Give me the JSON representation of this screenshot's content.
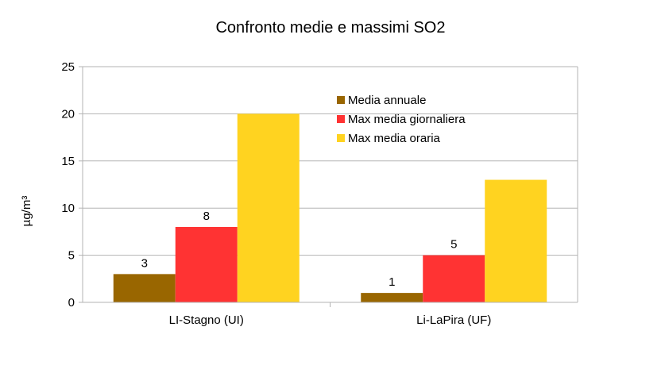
{
  "chart_data": {
    "type": "bar",
    "title": "Confronto medie e massimi SO2",
    "xlabel": "",
    "ylabel": "µg/m³",
    "ylim": [
      0,
      25
    ],
    "yticks": [
      0,
      5,
      10,
      15,
      20,
      25
    ],
    "grid": true,
    "legend_position": "top-right inside plot",
    "categories": [
      "LI-Stagno (UI)",
      "Li-LaPira  (UF)"
    ],
    "series": [
      {
        "name": "Media annuale",
        "color": "#996600",
        "values": [
          3,
          1
        ],
        "labels": [
          "3",
          "1"
        ]
      },
      {
        "name": "Max media giornaliera",
        "color": "#FF3333",
        "values": [
          8,
          5
        ],
        "labels": [
          "8",
          "5"
        ]
      },
      {
        "name": "Max media oraria",
        "color": "#FFD320",
        "values": [
          20,
          13
        ],
        "labels": [
          "",
          ""
        ]
      }
    ]
  }
}
